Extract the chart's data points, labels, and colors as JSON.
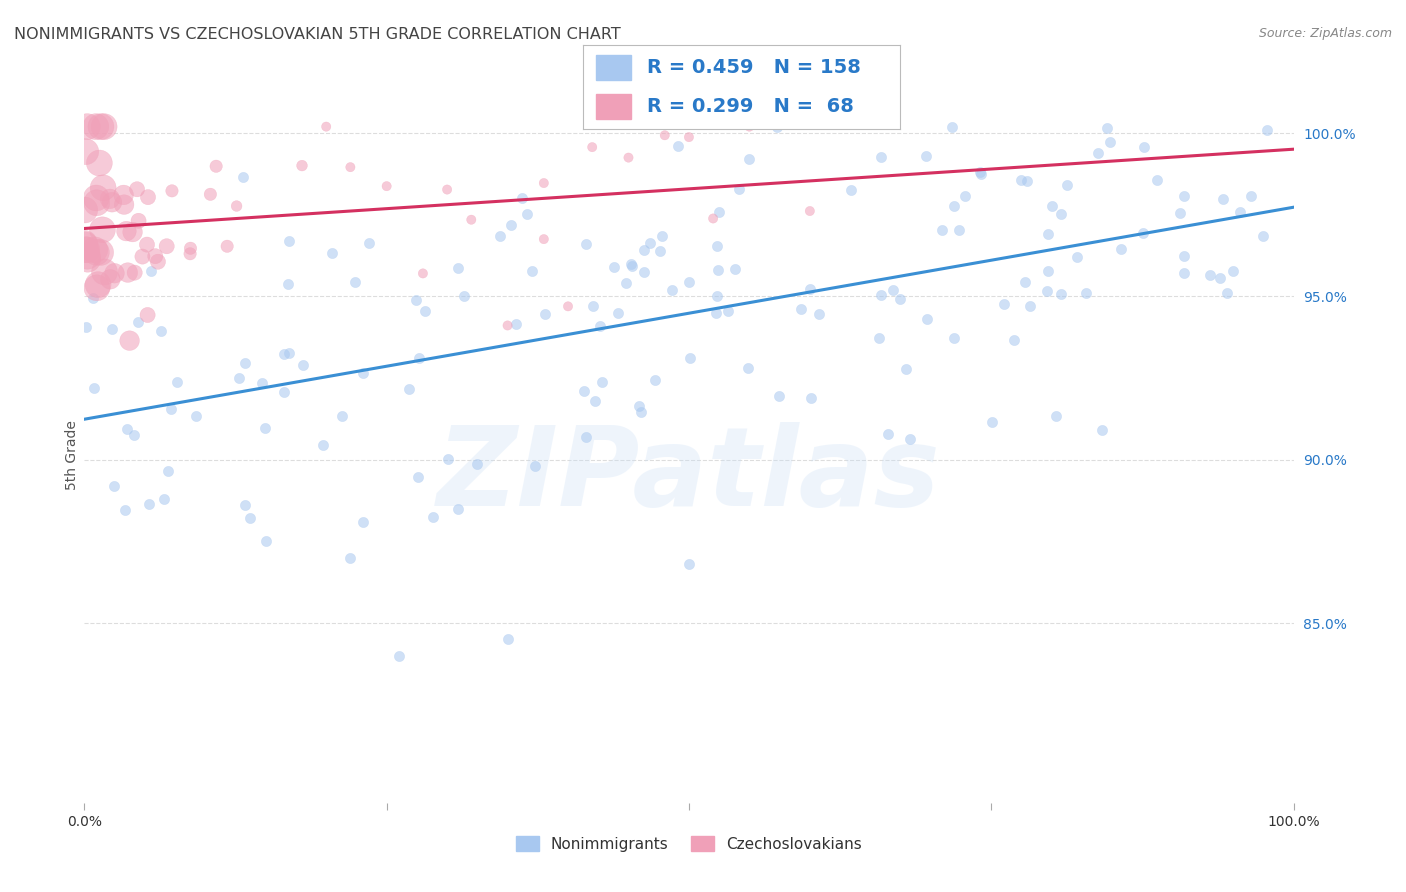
{
  "title": "NONIMMIGRANTS VS CZECHOSLOVAKIAN 5TH GRADE CORRELATION CHART",
  "source": "Source: ZipAtlas.com",
  "ylabel": "5th Grade",
  "watermark": "ZIPatlas",
  "xlim": [
    0.0,
    1.0
  ],
  "ylim": [
    0.795,
    1.008
  ],
  "blue_R": 0.459,
  "blue_N": 158,
  "pink_R": 0.299,
  "pink_N": 68,
  "blue_color": "#a8c8f0",
  "pink_color": "#f0a0b8",
  "blue_line_color": "#3a8fd4",
  "pink_line_color": "#d43060",
  "legend_text_color": "#2979c8",
  "background_color": "#ffffff",
  "grid_color": "#dddddd",
  "title_color": "#444444",
  "blue_line_start_y": 0.922,
  "blue_line_end_y": 0.975,
  "pink_line_start_y": 0.97,
  "pink_line_end_y": 1.0
}
